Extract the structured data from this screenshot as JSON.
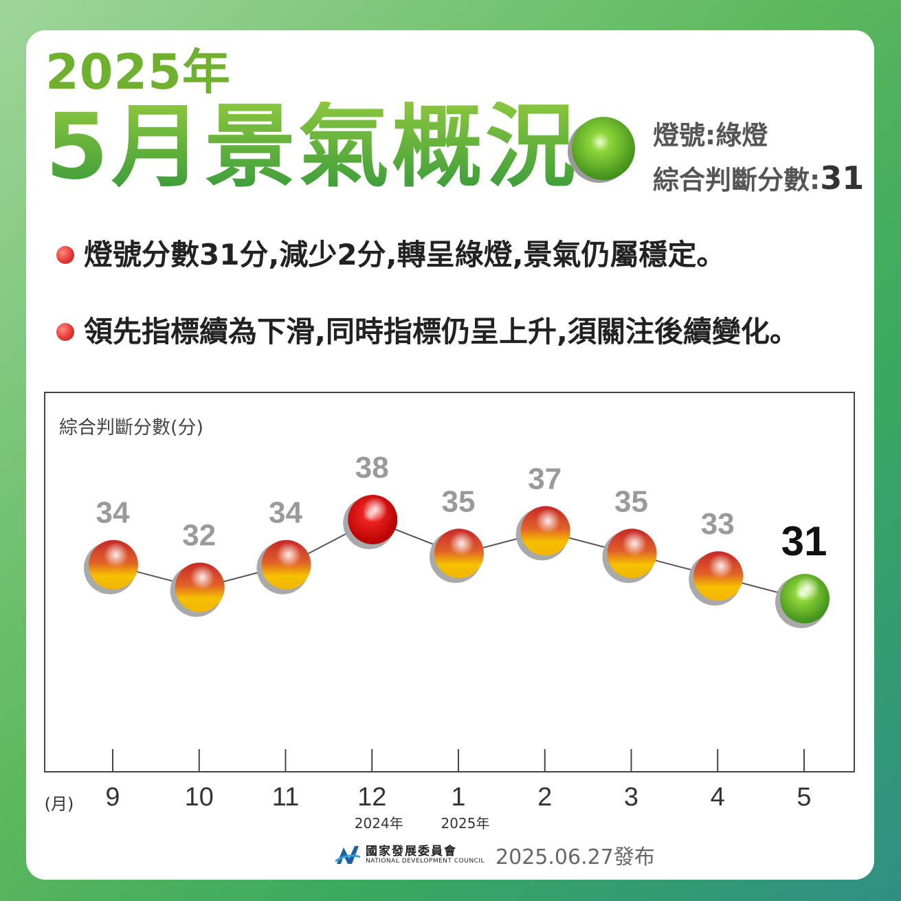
{
  "header": {
    "year": "2025年",
    "title": "5月景氣概況",
    "signal_label": "燈號:綠燈",
    "score_label": "綜合判斷分數:",
    "score_value": "31"
  },
  "bullets": [
    "燈號分數31分,減少2分,轉呈綠燈,景氣仍屬穩定。",
    "領先指標續為下滑,同時指標仍呈上升,須關注後續變化。"
  ],
  "chart_data": {
    "type": "line",
    "ylabel": "綜合判斷分數(分)",
    "xlabel": "(月)",
    "categories": [
      "9",
      "10",
      "11",
      "12",
      "1",
      "2",
      "3",
      "4",
      "5"
    ],
    "year_labels": [
      {
        "category": "12",
        "label": "2024年"
      },
      {
        "category": "1",
        "label": "2025年"
      }
    ],
    "series": [
      {
        "values": [
          34,
          32,
          34,
          38,
          35,
          37,
          35,
          33,
          31
        ],
        "signals": [
          "yellow-red",
          "yellow-red",
          "yellow-red",
          "red",
          "yellow-red",
          "yellow-red",
          "yellow-red",
          "yellow-red",
          "green"
        ]
      }
    ],
    "ylim": [
      20,
      40
    ],
    "colors": {
      "line": "#555555",
      "label": "#9a9a9a",
      "highlight_label": "#111111"
    }
  },
  "footer": {
    "org_name_zh": "國家發展委員會",
    "org_name_en": "NATIONAL DEVELOPMENT COUNCIL",
    "release": "2025.06.27發布"
  }
}
